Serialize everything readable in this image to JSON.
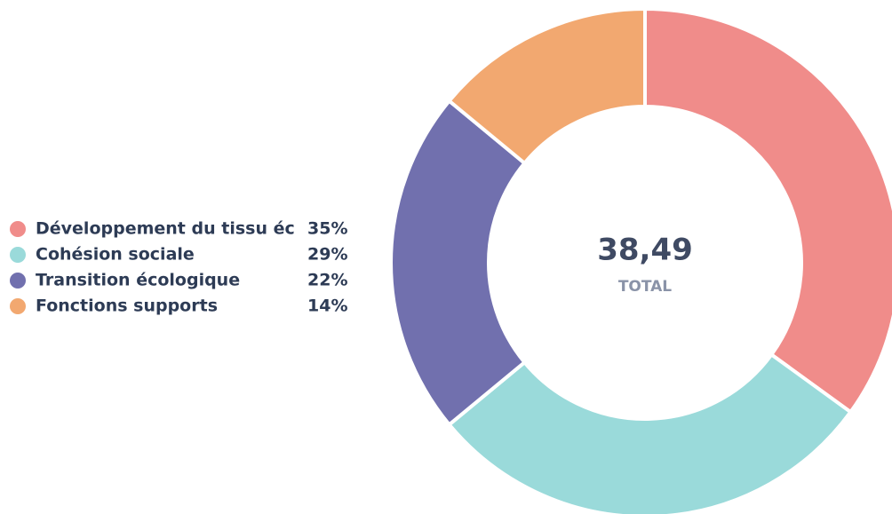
{
  "chart_data": {
    "type": "donut",
    "categories": [
      "Développement du tissu éc",
      "Cohésion sociale",
      "Transition écologique",
      "Fonctions supports"
    ],
    "values": [
      35,
      29,
      22,
      14
    ],
    "value_labels": [
      "35%",
      "29%",
      "22%",
      "14%"
    ],
    "colors": [
      "#f08c8a",
      "#9adada",
      "#7170ae",
      "#f2a870"
    ],
    "center_value": "38,49",
    "center_label": "TOTAL"
  }
}
